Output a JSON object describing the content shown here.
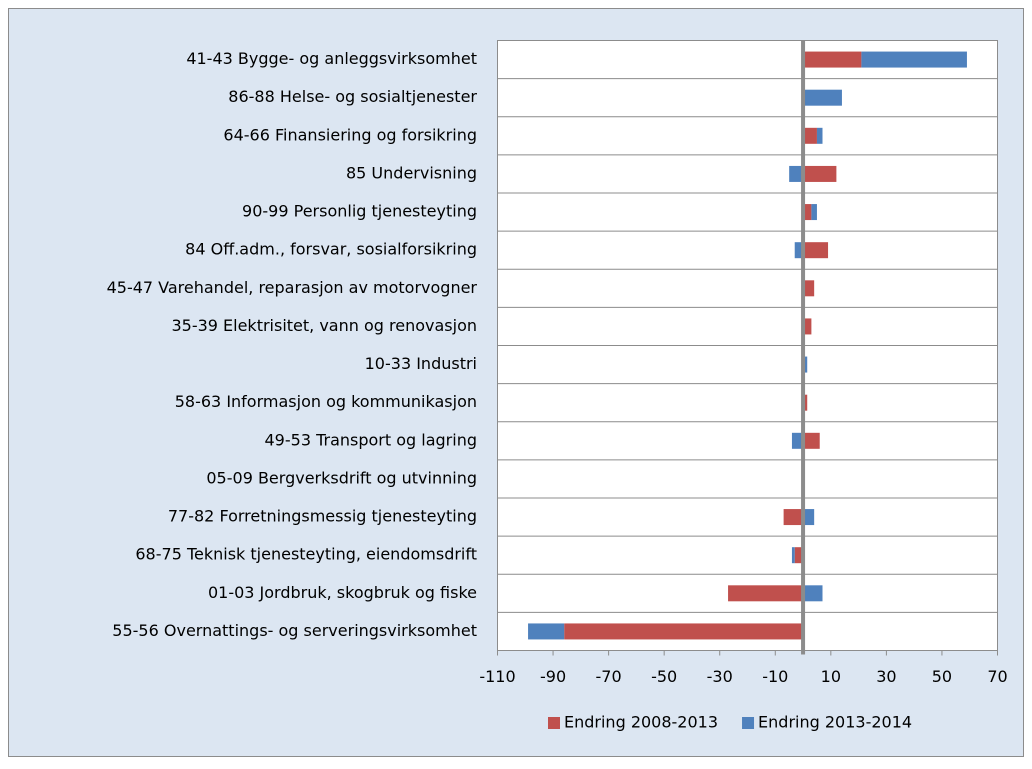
{
  "chart_data": {
    "type": "stacked-bar-horizontal",
    "categories": [
      "41-43 Bygge- og anleggsvirksomhet",
      "86-88 Helse- og sosialtjenester",
      "64-66 Finansiering og forsikring",
      "85 Undervisning",
      "90-99 Personlig tjenesteyting",
      "84 Off.adm., forsvar, sosialforsikring",
      "45-47 Varehandel, reparasjon av motorvogner",
      "35-39 Elektrisitet, vann og renovasjon",
      "10-33 Industri",
      "58-63 Informasjon og kommunikasjon",
      "49-53 Transport og lagring",
      "05-09 Bergverksdrift og utvinning",
      "77-82 Forretningsmessig tjenesteyting",
      "68-75 Teknisk tjenesteyting, eiendomsdrift",
      "01-03 Jordbruk, skogbruk og fiske",
      "55-56 Overnattings- og serveringsvirksomhet"
    ],
    "series": [
      {
        "name": "Endring 2008-2013",
        "color": "#c0504d",
        "values": [
          21,
          0,
          5,
          12,
          3,
          9,
          4,
          3,
          0,
          1.5,
          6,
          0,
          -7,
          -3,
          -27,
          -86
        ]
      },
      {
        "name": "Endring 2013-2014",
        "color": "#4f81bd",
        "values": [
          38,
          14,
          2,
          -5,
          2,
          -3,
          0,
          0,
          1.5,
          0,
          -4,
          0,
          4,
          -1,
          7,
          -13
        ]
      }
    ],
    "xlim": [
      -110,
      70
    ],
    "xticks": [
      -110,
      -90,
      -70,
      -50,
      -30,
      -10,
      10,
      30,
      50,
      70
    ],
    "legend": "bottom"
  }
}
